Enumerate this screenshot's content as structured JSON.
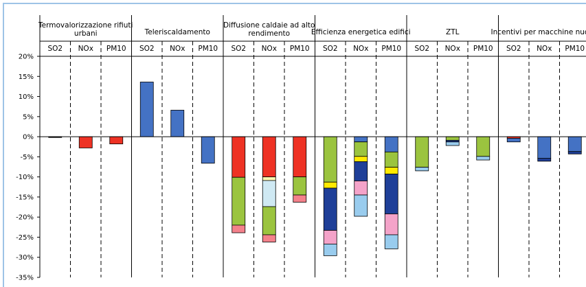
{
  "chart_data": {
    "type": "bar",
    "stacked": true,
    "ylim": [
      -35,
      20
    ],
    "yticks": [
      20,
      15,
      10,
      5,
      0,
      -5,
      -10,
      -15,
      -20,
      -25,
      -30,
      -35
    ],
    "ytick_labels": [
      "20%",
      "15%",
      "10%",
      "5%",
      "0%",
      "-5%",
      "-10%",
      "-15%",
      "-20%",
      "-25%",
      "-30%",
      "-35%"
    ],
    "grid": false,
    "legend": "none",
    "groups": [
      {
        "name": "Termovalorizzazione rifiuti urbani",
        "lines": [
          "Termovalorizzazione rifiuti",
          "urbani"
        ]
      },
      {
        "name": "Teleriscaldamento",
        "lines": [
          "Teleriscaldamento"
        ]
      },
      {
        "name": "Diffusione caldaie ad alto rendimento",
        "lines": [
          "Diffusione caldaie ad alto",
          "rendimento"
        ]
      },
      {
        "name": "Efficienza energetica edifici",
        "lines": [
          "Efficienza energetica edifici"
        ]
      },
      {
        "name": "ZTL",
        "lines": [
          "ZTL"
        ]
      },
      {
        "name": "Incentivi per macchine nuove",
        "lines": [
          "Incentivi per macchine nuove"
        ]
      }
    ],
    "pollutants": [
      "SO2",
      "NOx",
      "PM10"
    ],
    "bars": [
      {
        "group": 0,
        "pollutant": "SO2",
        "segments": [
          {
            "value": -0.2,
            "color": "#000000"
          }
        ]
      },
      {
        "group": 0,
        "pollutant": "NOx",
        "segments": [
          {
            "value": -2.8,
            "color": "#ee3224"
          }
        ]
      },
      {
        "group": 0,
        "pollutant": "PM10",
        "segments": [
          {
            "value": -1.8,
            "color": "#ee3224"
          }
        ]
      },
      {
        "group": 1,
        "pollutant": "SO2",
        "segments": [
          {
            "value": 13.6,
            "color": "#4472c4"
          }
        ]
      },
      {
        "group": 1,
        "pollutant": "NOx",
        "segments": [
          {
            "value": 6.6,
            "color": "#4472c4"
          }
        ]
      },
      {
        "group": 1,
        "pollutant": "PM10",
        "segments": [
          {
            "value": -6.6,
            "color": "#4472c4"
          }
        ]
      },
      {
        "group": 2,
        "pollutant": "SO2",
        "segments": [
          {
            "value": -10.1,
            "color": "#ee3224"
          },
          {
            "value": -11.9,
            "color": "#9bc43f"
          },
          {
            "value": -1.9,
            "color": "#f4818b"
          }
        ]
      },
      {
        "group": 2,
        "pollutant": "NOx",
        "segments": [
          {
            "value": -10.0,
            "color": "#ee3224"
          },
          {
            "value": -0.9,
            "color": "#fff8b0"
          },
          {
            "value": -6.5,
            "color": "#cfe9f3"
          },
          {
            "value": -7.0,
            "color": "#9bc43f"
          },
          {
            "value": -1.8,
            "color": "#f4818b"
          }
        ]
      },
      {
        "group": 2,
        "pollutant": "PM10",
        "segments": [
          {
            "value": -10.0,
            "color": "#ee3224"
          },
          {
            "value": -4.5,
            "color": "#9bc43f"
          },
          {
            "value": -1.8,
            "color": "#f4818b"
          }
        ]
      },
      {
        "group": 3,
        "pollutant": "SO2",
        "segments": [
          {
            "value": -11.3,
            "color": "#9bc43f"
          },
          {
            "value": -1.5,
            "color": "#ffea00"
          },
          {
            "value": -10.5,
            "color": "#1f3f98"
          },
          {
            "value": -3.4,
            "color": "#f4a3c9"
          },
          {
            "value": -2.9,
            "color": "#99ccee"
          }
        ]
      },
      {
        "group": 3,
        "pollutant": "NOx",
        "segments": [
          {
            "value": -1.3,
            "color": "#4472c4"
          },
          {
            "value": -3.6,
            "color": "#9bc43f"
          },
          {
            "value": -1.3,
            "color": "#ffea00"
          },
          {
            "value": -4.8,
            "color": "#1f3f98"
          },
          {
            "value": -3.5,
            "color": "#f4a3c9"
          },
          {
            "value": -5.3,
            "color": "#99ccee"
          }
        ]
      },
      {
        "group": 3,
        "pollutant": "PM10",
        "segments": [
          {
            "value": -3.8,
            "color": "#4472c4"
          },
          {
            "value": -3.8,
            "color": "#9bc43f"
          },
          {
            "value": -1.7,
            "color": "#ffea00"
          },
          {
            "value": -9.9,
            "color": "#1f3f98"
          },
          {
            "value": -5.2,
            "color": "#f4a3c9"
          },
          {
            "value": -3.5,
            "color": "#99ccee"
          }
        ]
      },
      {
        "group": 4,
        "pollutant": "SO2",
        "segments": [
          {
            "value": -7.6,
            "color": "#9bc43f"
          },
          {
            "value": -0.9,
            "color": "#99ccee"
          }
        ]
      },
      {
        "group": 4,
        "pollutant": "NOx",
        "segments": [
          {
            "value": -0.9,
            "color": "#9bc43f"
          },
          {
            "value": -0.4,
            "color": "#1f3f98"
          },
          {
            "value": -0.9,
            "color": "#99ccee"
          }
        ]
      },
      {
        "group": 4,
        "pollutant": "PM10",
        "segments": [
          {
            "value": -4.9,
            "color": "#9bc43f"
          },
          {
            "value": -0.9,
            "color": "#99ccee"
          }
        ]
      },
      {
        "group": 5,
        "pollutant": "SO2",
        "segments": [
          {
            "value": -0.4,
            "color": "#ee3224"
          },
          {
            "value": -0.9,
            "color": "#4472c4"
          }
        ]
      },
      {
        "group": 5,
        "pollutant": "NOx",
        "segments": [
          {
            "value": -5.4,
            "color": "#4472c4"
          },
          {
            "value": -0.7,
            "color": "#1f3f98"
          }
        ]
      },
      {
        "group": 5,
        "pollutant": "PM10",
        "segments": [
          {
            "value": -3.7,
            "color": "#4472c4"
          },
          {
            "value": -0.6,
            "color": "#1f3f98"
          }
        ]
      }
    ]
  }
}
